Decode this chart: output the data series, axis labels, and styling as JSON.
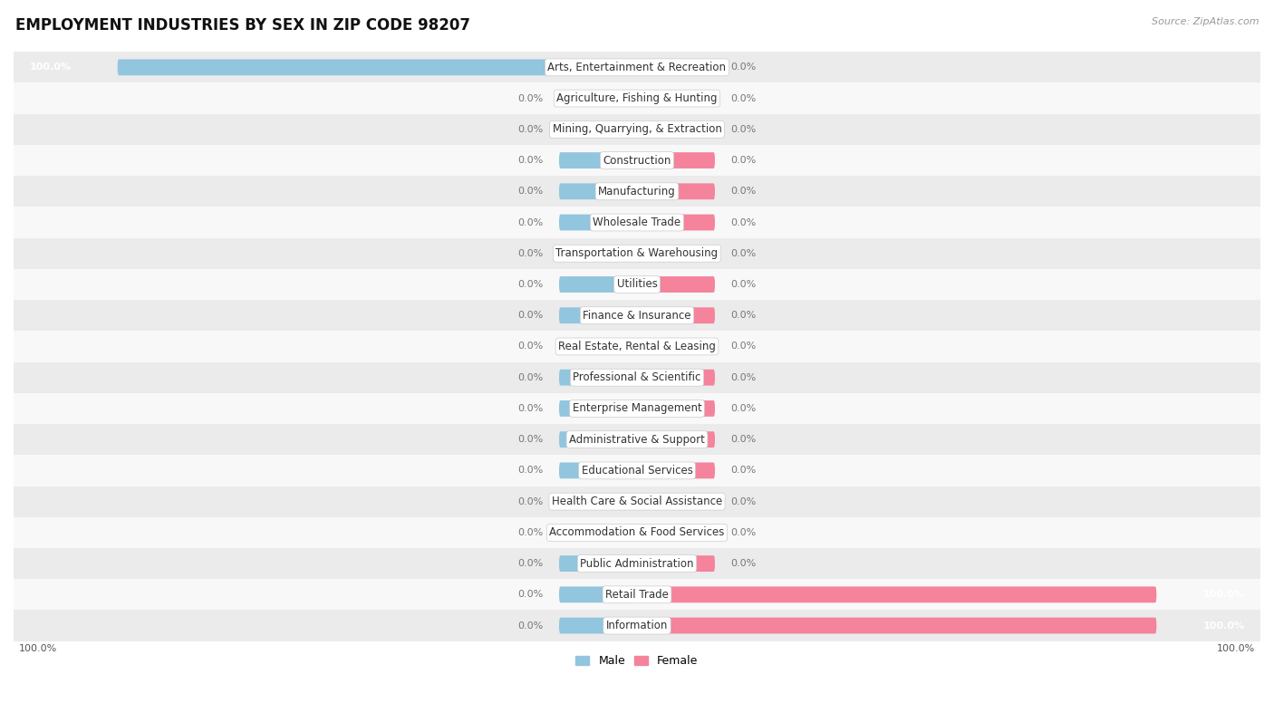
{
  "title": "EMPLOYMENT INDUSTRIES BY SEX IN ZIP CODE 98207",
  "source": "Source: ZipAtlas.com",
  "categories": [
    "Arts, Entertainment & Recreation",
    "Agriculture, Fishing & Hunting",
    "Mining, Quarrying, & Extraction",
    "Construction",
    "Manufacturing",
    "Wholesale Trade",
    "Transportation & Warehousing",
    "Utilities",
    "Finance & Insurance",
    "Real Estate, Rental & Leasing",
    "Professional & Scientific",
    "Enterprise Management",
    "Administrative & Support",
    "Educational Services",
    "Health Care & Social Assistance",
    "Accommodation & Food Services",
    "Public Administration",
    "Retail Trade",
    "Information"
  ],
  "male_values": [
    100.0,
    0.0,
    0.0,
    0.0,
    0.0,
    0.0,
    0.0,
    0.0,
    0.0,
    0.0,
    0.0,
    0.0,
    0.0,
    0.0,
    0.0,
    0.0,
    0.0,
    0.0,
    0.0
  ],
  "female_values": [
    0.0,
    0.0,
    0.0,
    0.0,
    0.0,
    0.0,
    0.0,
    0.0,
    0.0,
    0.0,
    0.0,
    0.0,
    0.0,
    0.0,
    0.0,
    0.0,
    0.0,
    100.0,
    100.0
  ],
  "male_color": "#92c5de",
  "female_color": "#f4839b",
  "bg_color": "#ffffff",
  "row_bg_even": "#ebebeb",
  "row_bg_odd": "#f8f8f8",
  "bar_height": 0.52,
  "title_fontsize": 12,
  "label_fontsize": 8.5,
  "value_fontsize": 8,
  "legend_fontsize": 9,
  "stub_size": 15,
  "full_size": 100,
  "xlim_left": -120,
  "xlim_right": 120
}
